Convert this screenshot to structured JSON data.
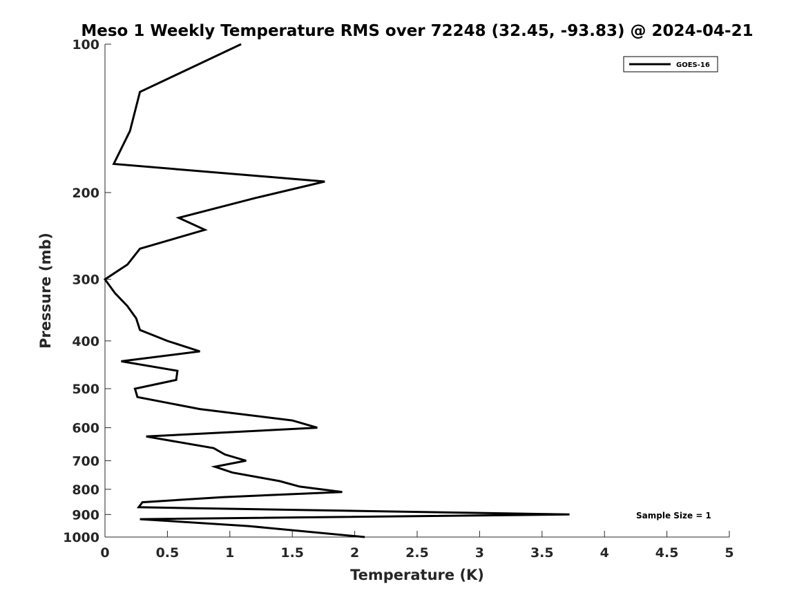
{
  "chart_data": {
    "type": "line",
    "title": "Meso 1 Weekly Temperature RMS over 72248 (32.45, -93.83) @ 2024-04-21",
    "xlabel": "Temperature (K)",
    "ylabel": "Pressure (mb)",
    "xlim": [
      0,
      5
    ],
    "ylim": [
      100,
      1000
    ],
    "y_scale": "log",
    "y_reversed": true,
    "x_ticks": [
      0,
      0.5,
      1,
      1.5,
      2,
      2.5,
      3,
      3.5,
      4,
      4.5,
      5
    ],
    "x_tick_labels": [
      "0",
      "0.5",
      "1",
      "1.5",
      "2",
      "2.5",
      "3",
      "3.5",
      "4",
      "4.5",
      "5"
    ],
    "y_ticks": [
      100,
      200,
      300,
      400,
      500,
      600,
      700,
      800,
      900,
      1000
    ],
    "y_tick_labels": [
      "100",
      "200",
      "300",
      "400",
      "500",
      "600",
      "700",
      "800",
      "900",
      "1000"
    ],
    "grid": false,
    "legend_position": "top-right",
    "series": [
      {
        "name": "GOES-16",
        "color": "#000000",
        "x": [
          1.09,
          0.28,
          0.2,
          0.07,
          1.76,
          1.21,
          0.59,
          0.8,
          0.28,
          0.18,
          0.0,
          0.08,
          0.18,
          0.25,
          0.28,
          0.5,
          0.76,
          0.13,
          0.58,
          0.57,
          0.24,
          0.26,
          0.76,
          1.5,
          1.7,
          0.33,
          0.87,
          0.96,
          1.13,
          0.88,
          1.02,
          1.4,
          1.56,
          1.9,
          0.94,
          0.3,
          0.27,
          3.72,
          0.28,
          1.15,
          2.08
        ],
        "y": [
          100,
          125,
          150,
          175,
          190,
          205,
          225,
          238,
          260,
          280,
          300,
          320,
          340,
          360,
          380,
          400,
          420,
          440,
          460,
          480,
          500,
          520,
          550,
          580,
          600,
          625,
          660,
          680,
          700,
          720,
          740,
          770,
          790,
          810,
          830,
          850,
          870,
          900,
          920,
          950,
          1000
        ]
      }
    ],
    "annotations": [
      "Sample Size = 1"
    ]
  }
}
